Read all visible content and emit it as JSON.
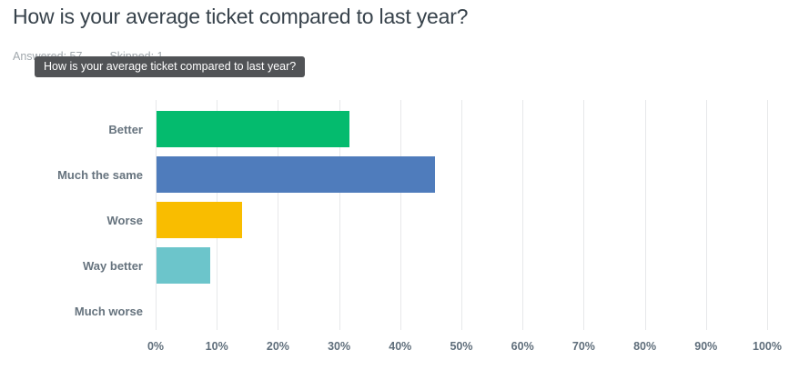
{
  "header": {
    "title": "How is your average ticket compared to last year?",
    "answered_label": "Answered: 57",
    "skipped_label": "Skipped: 1"
  },
  "tooltip": {
    "text": "How is your average ticket compared to last year?"
  },
  "chart_data": {
    "type": "bar",
    "orientation": "horizontal",
    "title": "How is your average ticket compared to last year?",
    "categories": [
      "Better",
      "Much the same",
      "Worse",
      "Way better",
      "Much worse"
    ],
    "values": [
      31.58,
      45.61,
      14.04,
      8.77,
      0
    ],
    "bar_colors": [
      "#04BB6E",
      "#4F7CBC",
      "#F9BD00",
      "#6CC5CB",
      null
    ],
    "xlabel": "",
    "ylabel": "",
    "xlim": [
      0,
      100
    ],
    "x_ticks": [
      "0%",
      "10%",
      "20%",
      "30%",
      "40%",
      "50%",
      "60%",
      "70%",
      "80%",
      "90%",
      "100%"
    ],
    "grid": true,
    "legend": false
  },
  "colors": {
    "title_text": "#37424B",
    "stats_text": "#A0A7AC",
    "tooltip_bg": "#515356",
    "tooltip_text": "#FFFFFF",
    "gridline": "#E7E8EA",
    "category_label": "#66737E",
    "tick_label": "#5F6E7B"
  }
}
